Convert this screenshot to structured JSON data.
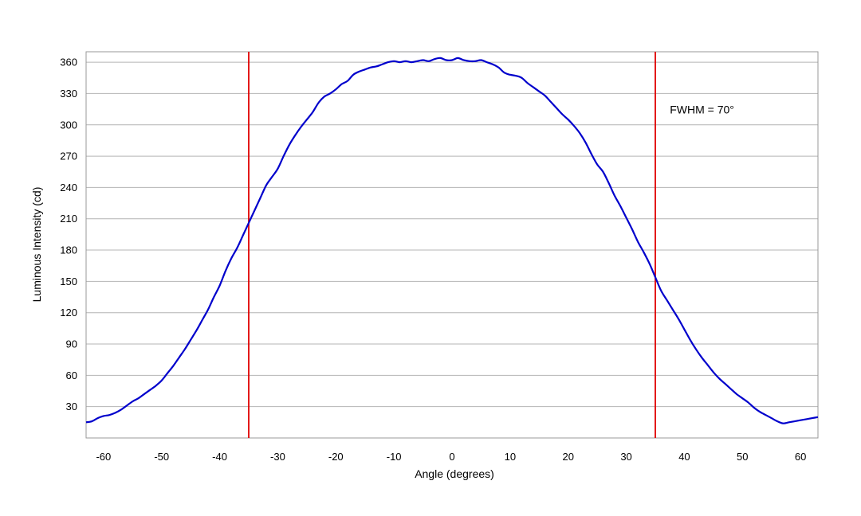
{
  "chart_data": {
    "type": "line",
    "title": "",
    "xlabel": "Angle (degrees)",
    "ylabel": "Luminous Intensity (cd)",
    "xlim": [
      -63,
      63
    ],
    "ylim": [
      0,
      370
    ],
    "xticks": [
      -60,
      -50,
      -40,
      -30,
      -20,
      -10,
      0,
      10,
      20,
      30,
      40,
      50,
      60
    ],
    "yticks": [
      30,
      60,
      90,
      120,
      150,
      180,
      210,
      240,
      270,
      300,
      330,
      360
    ],
    "grid": "horizontal",
    "legend": "none",
    "series": [
      {
        "color": "#0000cc",
        "x": [
          -63,
          -62,
          -61,
          -60,
          -59,
          -58,
          -57,
          -56,
          -55,
          -54,
          -53,
          -52,
          -51,
          -50,
          -49,
          -48,
          -47,
          -46,
          -45,
          -44,
          -43,
          -42,
          -41,
          -40,
          -39,
          -38,
          -37,
          -36,
          -35,
          -34,
          -33,
          -32,
          -31,
          -30,
          -29,
          -28,
          -27,
          -26,
          -25,
          -24,
          -23,
          -22,
          -21,
          -20,
          -19,
          -18,
          -17,
          -16,
          -15,
          -14,
          -13,
          -12,
          -11,
          -10,
          -9,
          -8,
          -7,
          -6,
          -5,
          -4,
          -3,
          -2,
          -1,
          0,
          1,
          2,
          3,
          4,
          5,
          6,
          7,
          8,
          9,
          10,
          11,
          12,
          13,
          14,
          15,
          16,
          17,
          18,
          19,
          20,
          21,
          22,
          23,
          24,
          25,
          26,
          27,
          28,
          29,
          30,
          31,
          32,
          33,
          34,
          35,
          36,
          37,
          38,
          39,
          40,
          41,
          42,
          43,
          44,
          45,
          46,
          47,
          48,
          49,
          50,
          51,
          52,
          53,
          54,
          55,
          56,
          57,
          58,
          59,
          60,
          61,
          62,
          63
        ],
        "values": [
          15,
          16,
          19,
          21,
          22,
          24,
          27,
          31,
          35,
          38,
          42,
          46,
          50,
          55,
          62,
          69,
          77,
          85,
          94,
          103,
          113,
          123,
          135,
          146,
          160,
          172,
          182,
          194,
          206,
          218,
          230,
          242,
          250,
          258,
          270,
          281,
          290,
          298,
          305,
          312,
          321,
          327,
          330,
          334,
          339,
          342,
          348,
          351,
          353,
          355,
          356,
          358,
          360,
          361,
          360,
          361,
          360,
          361,
          362,
          361,
          363,
          364,
          362,
          362,
          364,
          362,
          361,
          361,
          362,
          360,
          358,
          355,
          350,
          348,
          347,
          345,
          340,
          336,
          332,
          328,
          322,
          316,
          310,
          305,
          299,
          292,
          283,
          272,
          262,
          255,
          244,
          232,
          222,
          211,
          200,
          188,
          178,
          167,
          154,
          141,
          132,
          123,
          114,
          104,
          94,
          85,
          77,
          70,
          63,
          57,
          52,
          47,
          42,
          38,
          34,
          29,
          25,
          22,
          19,
          16,
          14,
          15,
          16,
          17,
          18,
          19,
          20
        ]
      }
    ],
    "vlines": [
      {
        "x": -35,
        "color": "#e00000"
      },
      {
        "x": 35,
        "color": "#e00000"
      }
    ],
    "annotations": [
      {
        "text": "FWHM = 70°",
        "x": 37.5,
        "y": 311
      }
    ]
  }
}
